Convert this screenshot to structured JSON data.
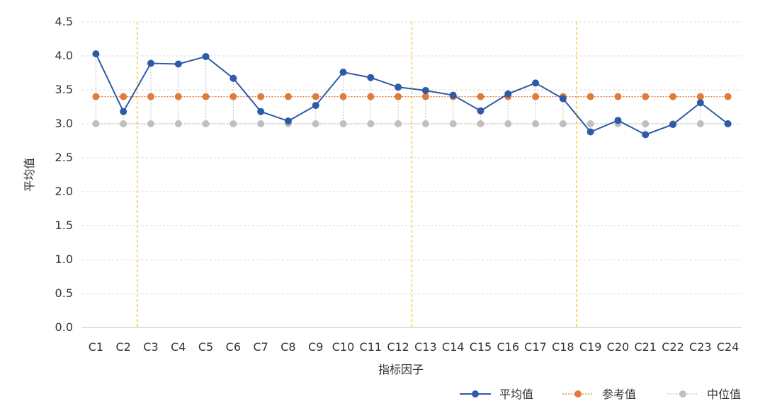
{
  "chart_data": {
    "type": "line",
    "xlabel": "指标因子",
    "ylabel": "平均值",
    "ylim": [
      0,
      4.5
    ],
    "yticks": [
      "0.0",
      "0.5",
      "1.0",
      "1.5",
      "2.0",
      "2.5",
      "3.0",
      "3.5",
      "4.0",
      "4.5"
    ],
    "categories": [
      "C1",
      "C2",
      "C3",
      "C4",
      "C5",
      "C6",
      "C7",
      "C8",
      "C9",
      "C10",
      "C11",
      "C12",
      "C13",
      "C14",
      "C15",
      "C16",
      "C17",
      "C18",
      "C19",
      "C20",
      "C21",
      "C22",
      "C23",
      "C24"
    ],
    "series": [
      {
        "name": "平均值",
        "color": "#2E5AA7",
        "style": "solid",
        "values": [
          4.03,
          3.18,
          3.89,
          3.88,
          3.99,
          3.67,
          3.18,
          3.04,
          3.27,
          3.76,
          3.68,
          3.54,
          3.49,
          3.42,
          3.19,
          3.44,
          3.6,
          3.37,
          2.88,
          3.05,
          2.84,
          2.99,
          3.31,
          3.0
        ]
      },
      {
        "name": "参考值",
        "color": "#E07B39",
        "style": "dotted",
        "values": [
          3.4,
          3.4,
          3.4,
          3.4,
          3.4,
          3.4,
          3.4,
          3.4,
          3.4,
          3.4,
          3.4,
          3.4,
          3.4,
          3.4,
          3.4,
          3.4,
          3.4,
          3.4,
          3.4,
          3.4,
          3.4,
          3.4,
          3.4,
          3.4
        ]
      },
      {
        "name": "中位值",
        "color": "#BFBFBF",
        "style": "dotted",
        "values": [
          3,
          3,
          3,
          3,
          3,
          3,
          3,
          3,
          3,
          3,
          3,
          3,
          3,
          3,
          3,
          3,
          3,
          3,
          3,
          3,
          3,
          3,
          3,
          3
        ]
      }
    ],
    "group_dividers_after": [
      "C2",
      "C12",
      "C18"
    ],
    "divider_color": "#F2C200",
    "grid": true,
    "legend_position": "bottom-right"
  }
}
